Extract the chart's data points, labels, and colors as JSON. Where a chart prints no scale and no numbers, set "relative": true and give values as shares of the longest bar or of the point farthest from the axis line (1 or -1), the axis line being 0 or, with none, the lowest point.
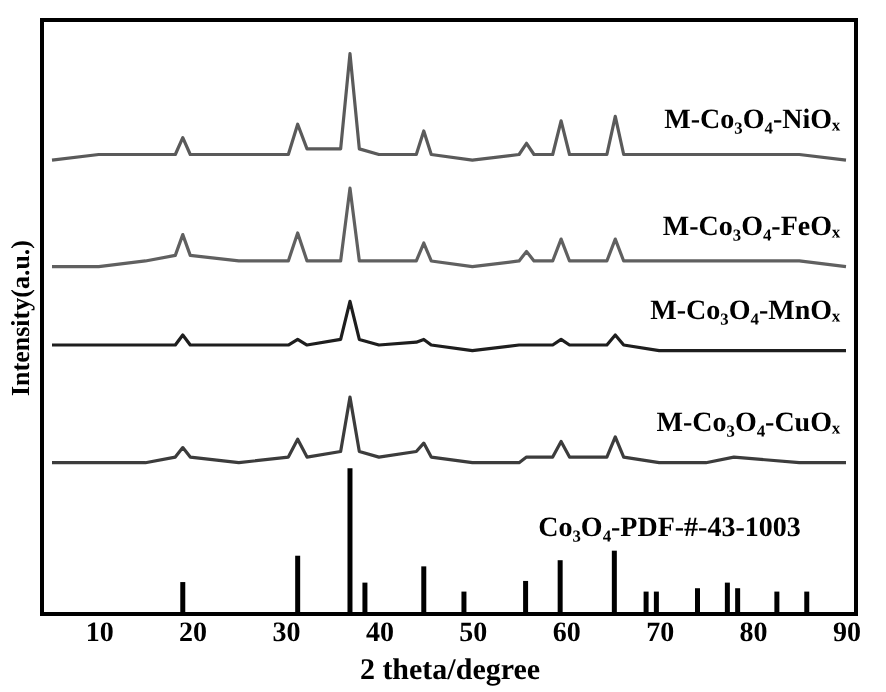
{
  "chart_data": {
    "type": "line",
    "relative": true,
    "xlabel": "2 theta/degree",
    "ylabel": "Intensity(a.u.)",
    "xlim": [
      5,
      90
    ],
    "xticks": [
      10,
      20,
      30,
      40,
      50,
      60,
      70,
      80,
      90
    ],
    "tick_labels": "x",
    "grid": false,
    "series": [
      {
        "name": "M-Co₃O₄-NiOₓ",
        "color": "#5a5a5a",
        "x": [
          5,
          10,
          15,
          18.2,
          19.0,
          19.8,
          25,
          30.3,
          31.3,
          32.3,
          35.9,
          36.9,
          37.9,
          40,
          44,
          44.8,
          45.6,
          50,
          55,
          55.8,
          56.6,
          58.6,
          59.5,
          60.4,
          64.4,
          65.3,
          66.2,
          70,
          75,
          80,
          85,
          90
        ],
        "values": [
          0.81,
          0.82,
          0.82,
          0.82,
          0.85,
          0.82,
          0.82,
          0.82,
          0.874,
          0.83,
          0.83,
          1.0,
          0.83,
          0.82,
          0.82,
          0.862,
          0.82,
          0.81,
          0.82,
          0.84,
          0.82,
          0.82,
          0.88,
          0.82,
          0.82,
          0.888,
          0.82,
          0.82,
          0.82,
          0.82,
          0.82,
          0.81
        ]
      },
      {
        "name": "M-Co₃O₄-FeOₓ",
        "color": "#606060",
        "x": [
          5,
          10,
          15,
          18.2,
          19.0,
          19.8,
          25,
          30.3,
          31.3,
          32.3,
          35.9,
          36.9,
          37.9,
          40,
          44,
          44.8,
          45.6,
          50,
          55,
          55.8,
          56.6,
          58.6,
          59.5,
          60.4,
          64.4,
          65.3,
          66.2,
          70,
          75,
          80,
          85,
          90
        ],
        "values": [
          0.62,
          0.62,
          0.63,
          0.64,
          0.677,
          0.64,
          0.63,
          0.63,
          0.68,
          0.63,
          0.63,
          0.76,
          0.63,
          0.63,
          0.63,
          0.662,
          0.63,
          0.62,
          0.63,
          0.647,
          0.63,
          0.63,
          0.669,
          0.63,
          0.63,
          0.669,
          0.63,
          0.63,
          0.63,
          0.63,
          0.63,
          0.62
        ]
      },
      {
        "name": "M-Co₃O₄-MnOₓ",
        "color": "#1e1e1e",
        "x": [
          5,
          10,
          15,
          18.2,
          19.0,
          19.8,
          25,
          30.3,
          31.3,
          32.3,
          35.9,
          36.9,
          37.9,
          40,
          44,
          44.8,
          45.6,
          50,
          55,
          55.8,
          56.6,
          58.6,
          59.5,
          60.4,
          64.4,
          65.3,
          66.2,
          70,
          75,
          80,
          85,
          90
        ],
        "values": [
          0.48,
          0.48,
          0.48,
          0.48,
          0.498,
          0.48,
          0.48,
          0.48,
          0.49,
          0.48,
          0.49,
          0.558,
          0.49,
          0.48,
          0.485,
          0.49,
          0.48,
          0.47,
          0.48,
          0.48,
          0.48,
          0.48,
          0.49,
          0.48,
          0.48,
          0.498,
          0.48,
          0.47,
          0.47,
          0.47,
          0.47,
          0.47
        ]
      },
      {
        "name": "M-Co₃O₄-CuOₓ",
        "color": "#3c3c3c",
        "x": [
          5,
          10,
          15,
          18.2,
          19.0,
          19.8,
          25,
          30.3,
          31.3,
          32.3,
          35.9,
          36.9,
          37.9,
          40,
          44,
          44.8,
          45.6,
          50,
          55,
          55.8,
          56.6,
          58.6,
          59.5,
          60.4,
          64.4,
          65.3,
          66.2,
          70,
          75,
          78,
          85,
          90
        ],
        "values": [
          0.27,
          0.27,
          0.27,
          0.28,
          0.297,
          0.28,
          0.27,
          0.28,
          0.312,
          0.28,
          0.29,
          0.387,
          0.29,
          0.28,
          0.29,
          0.305,
          0.28,
          0.27,
          0.27,
          0.28,
          0.28,
          0.28,
          0.308,
          0.28,
          0.28,
          0.316,
          0.28,
          0.27,
          0.27,
          0.28,
          0.27,
          0.27
        ]
      },
      {
        "name": "Co₃O₄-PDF-#-43-1003",
        "type": "bar",
        "color": "#000000",
        "x": [
          19.0,
          31.3,
          36.9,
          38.5,
          44.8,
          49.1,
          55.7,
          59.4,
          65.2,
          68.6,
          69.7,
          74.1,
          77.3,
          78.4,
          82.6,
          85.8
        ],
        "values": [
          0.057,
          0.104,
          0.26,
          0.056,
          0.085,
          0.04,
          0.059,
          0.096,
          0.113,
          0.04,
          0.04,
          0.046,
          0.056,
          0.046,
          0.04,
          0.04
        ]
      }
    ]
  }
}
